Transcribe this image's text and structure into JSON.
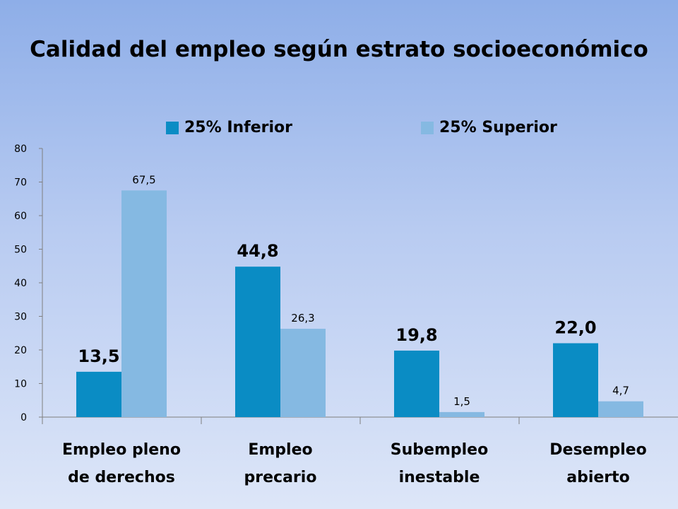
{
  "chart_data": {
    "type": "bar",
    "title": "Calidad del empleo según estrato socioeconómico",
    "categories": [
      [
        "Empleo pleno",
        "de derechos"
      ],
      [
        "Empleo",
        "precario"
      ],
      [
        "Subempleo",
        "inestable"
      ],
      [
        "Desempleo",
        "abierto"
      ]
    ],
    "series": [
      {
        "name": "25% Inferior",
        "color": "#0a8cc4",
        "values": [
          13.5,
          44.8,
          19.8,
          22.0
        ],
        "labels": [
          "13,5",
          "44,8",
          "19,8",
          "22,0"
        ]
      },
      {
        "name": "25% Superior",
        "color": "#85b9e2",
        "values": [
          67.5,
          26.3,
          1.5,
          4.7
        ],
        "labels": [
          "67,5",
          "26,3",
          "1,5",
          "4,7"
        ]
      }
    ],
    "yticks": [
      "0",
      "10",
      "20",
      "30",
      "40",
      "50",
      "60",
      "70",
      "80"
    ],
    "ylim": [
      0,
      80
    ],
    "legend": "top",
    "grid": false
  }
}
